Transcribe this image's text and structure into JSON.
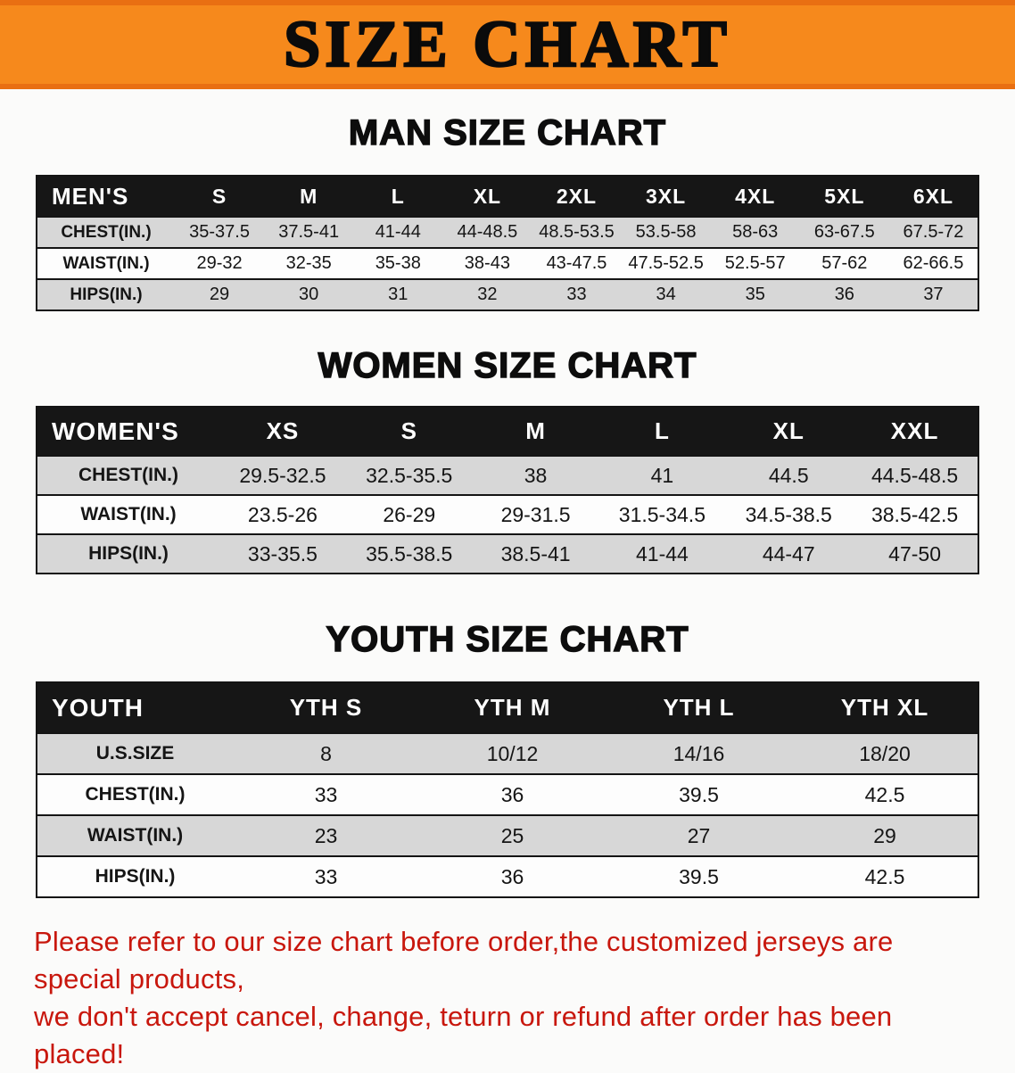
{
  "banner": {
    "title": "SIZE CHART"
  },
  "colors": {
    "banner_orange": "#f6891c",
    "banner_edge": "#e96f12",
    "header_black": "#161616",
    "stripe_gray": "#d7d7d7",
    "footer_red": "#c8170d"
  },
  "sections": [
    {
      "id": "men",
      "heading": "MAN SIZE CHART",
      "table": {
        "header": [
          "MEN'S",
          "S",
          "M",
          "L",
          "XL",
          "2XL",
          "3XL",
          "4XL",
          "5XL",
          "6XL"
        ],
        "rows": [
          [
            "CHEST(IN.)",
            "35-37.5",
            "37.5-41",
            "41-44",
            "44-48.5",
            "48.5-53.5",
            "53.5-58",
            "58-63",
            "63-67.5",
            "67.5-72"
          ],
          [
            "WAIST(IN.)",
            "29-32",
            "32-35",
            "35-38",
            "38-43",
            "43-47.5",
            "47.5-52.5",
            "52.5-57",
            "57-62",
            "62-66.5"
          ],
          [
            "HIPS(IN.)",
            "29",
            "30",
            "31",
            "32",
            "33",
            "34",
            "35",
            "36",
            "37"
          ]
        ]
      }
    },
    {
      "id": "women",
      "heading": "WOMEN SIZE CHART",
      "table": {
        "header": [
          "WOMEN'S",
          "XS",
          "S",
          "M",
          "L",
          "XL",
          "XXL"
        ],
        "rows": [
          [
            "CHEST(IN.)",
            "29.5-32.5",
            "32.5-35.5",
            "38",
            "41",
            "44.5",
            "44.5-48.5"
          ],
          [
            "WAIST(IN.)",
            "23.5-26",
            "26-29",
            "29-31.5",
            "31.5-34.5",
            "34.5-38.5",
            "38.5-42.5"
          ],
          [
            "HIPS(IN.)",
            "33-35.5",
            "35.5-38.5",
            "38.5-41",
            "41-44",
            "44-47",
            "47-50"
          ]
        ]
      }
    },
    {
      "id": "youth",
      "heading": "YOUTH SIZE CHART",
      "table": {
        "header": [
          "YOUTH",
          "YTH S",
          "YTH M",
          "YTH L",
          "YTH XL"
        ],
        "rows": [
          [
            "U.S.SIZE",
            "8",
            "10/12",
            "14/16",
            "18/20"
          ],
          [
            "CHEST(IN.)",
            "33",
            "36",
            "39.5",
            "42.5"
          ],
          [
            "WAIST(IN.)",
            "23",
            "25",
            "27",
            "29"
          ],
          [
            "HIPS(IN.)",
            "33",
            "36",
            "39.5",
            "42.5"
          ]
        ]
      }
    }
  ],
  "footer": {
    "line1": "Please refer to our size chart before order,the customized jerseys are special products,",
    "line2": "we don't accept cancel, change, teturn or refund after order has been placed!"
  }
}
